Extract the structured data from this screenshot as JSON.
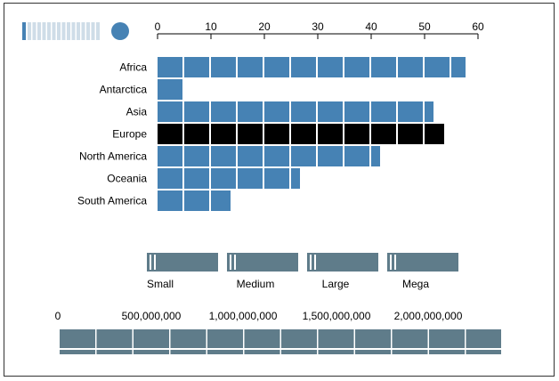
{
  "chart_data": {
    "type": "bar",
    "orientation": "horizontal",
    "categories": [
      "Africa",
      "Antarctica",
      "Asia",
      "Europe",
      "North America",
      "Oceania",
      "South America"
    ],
    "values": [
      58,
      5,
      52,
      54,
      42,
      27,
      14
    ],
    "highlighted_category": "Europe",
    "xlim": [
      0,
      60
    ],
    "x_ticks": [
      "0",
      "10",
      "20",
      "30",
      "40",
      "50",
      "60"
    ],
    "colors": {
      "bar": "#4682b4",
      "highlight": "#000000",
      "control": "#5f7c8a",
      "control_light": "#cfdde8",
      "handle": "#4682b4"
    }
  },
  "controls": {
    "size_filter": {
      "options": [
        "Small",
        "Medium",
        "Large",
        "Mega"
      ]
    },
    "population_axis": {
      "ticks": [
        "0",
        "500,000,000",
        "1,000,000,000",
        "1,500,000,000",
        "2,000,000,000"
      ]
    }
  }
}
